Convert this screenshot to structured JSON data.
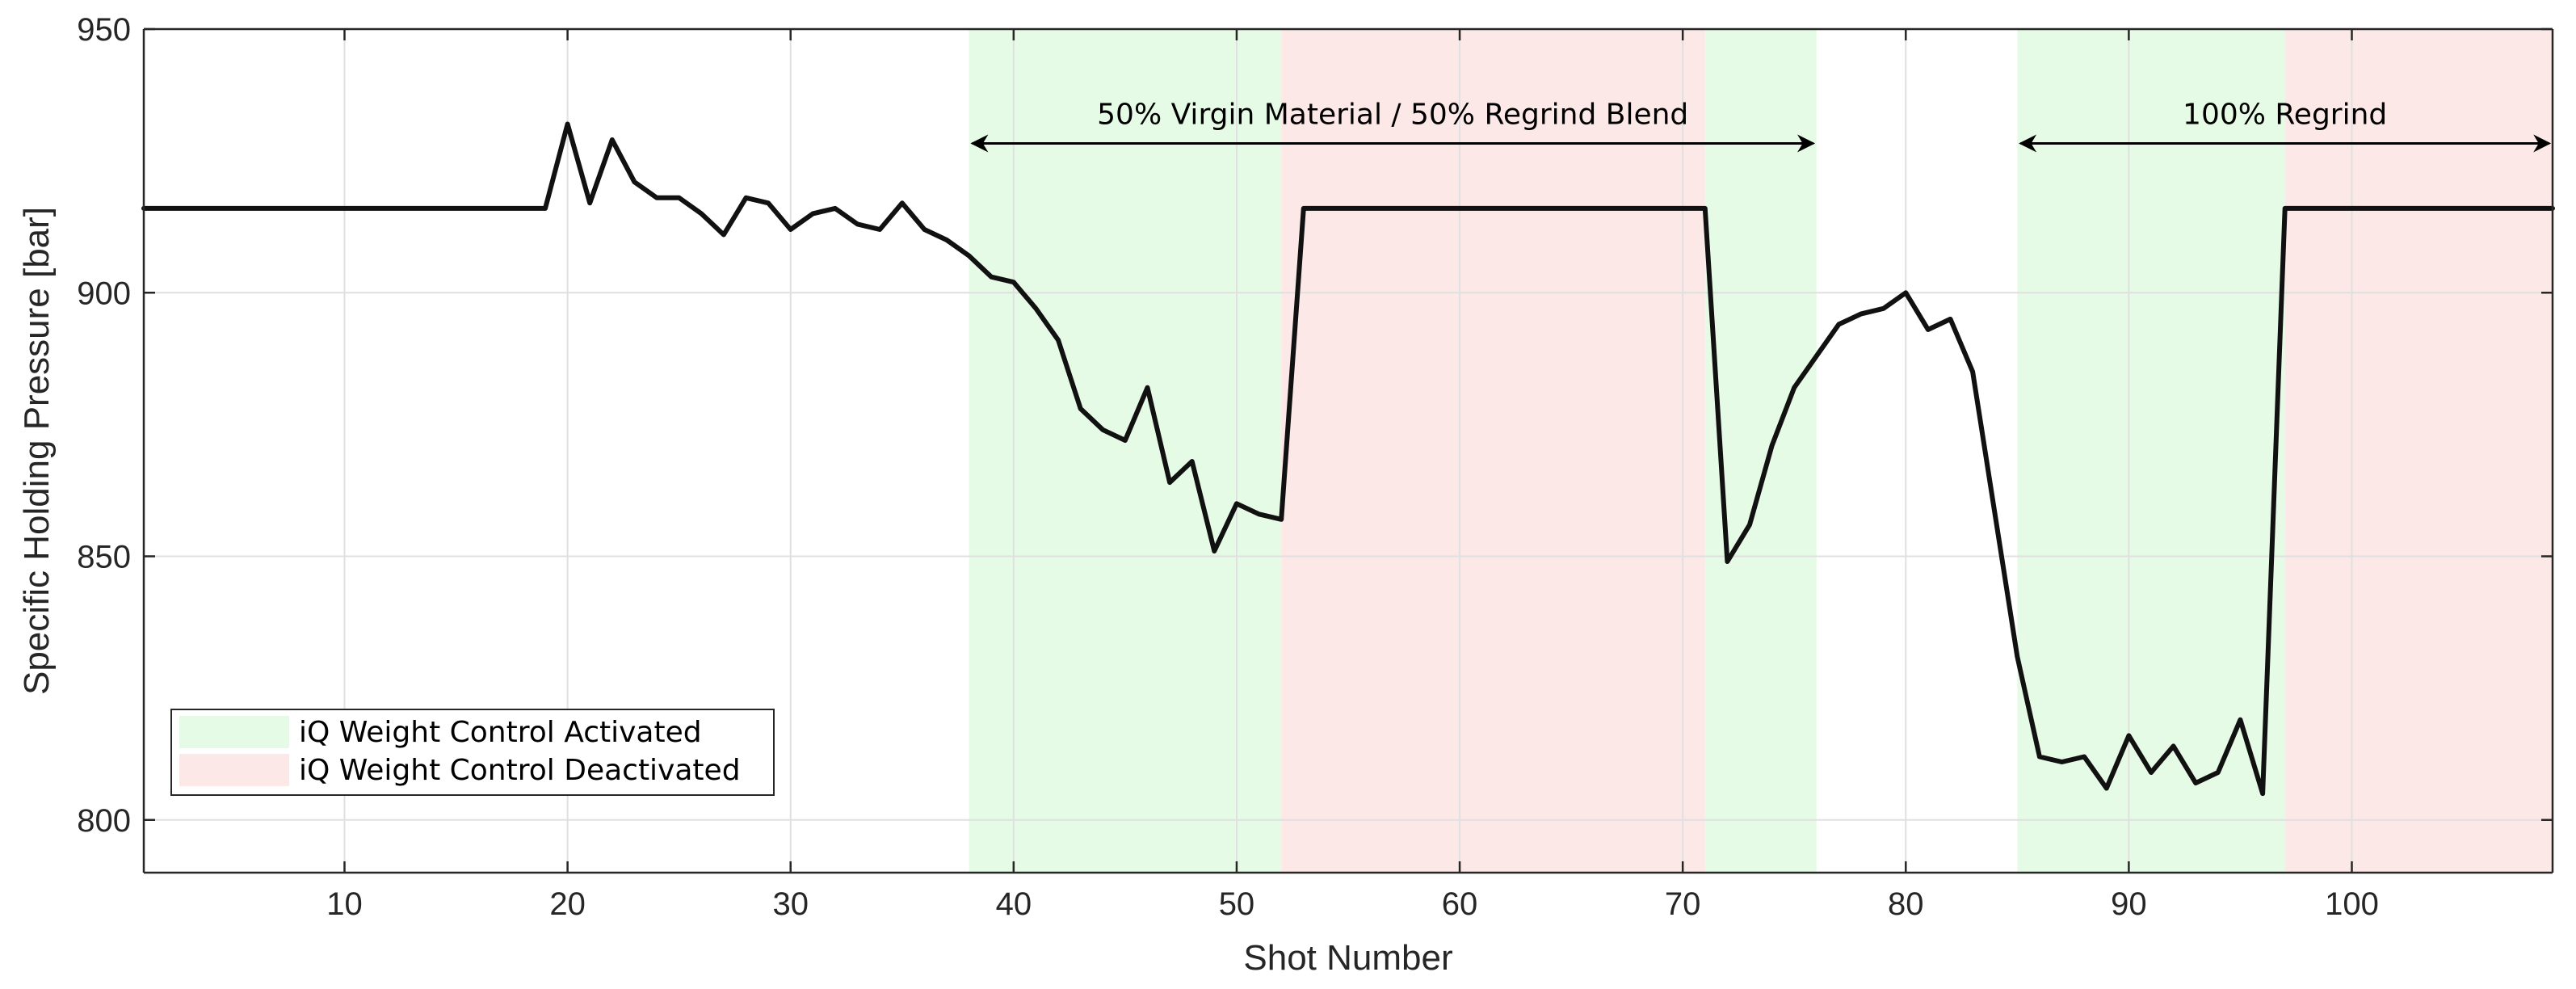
{
  "chart_data": {
    "type": "line",
    "xlabel": "Shot Number",
    "ylabel": "Specific Holding Pressure [bar]",
    "xlim": [
      1,
      109
    ],
    "ylim": [
      790,
      950
    ],
    "xticks": [
      10,
      20,
      30,
      40,
      50,
      60,
      70,
      80,
      90,
      100
    ],
    "yticks": [
      800,
      850,
      900,
      950
    ],
    "grid": true,
    "legend_position": "bottom-left",
    "colors": {
      "line": "#111111",
      "activated": "#e6fbe6",
      "deactivated": "#fde8e8",
      "grid": "#e0e0e0",
      "axis": "#262626"
    },
    "series": [
      {
        "x": [
          1,
          2,
          3,
          4,
          5,
          6,
          7,
          8,
          9,
          10,
          11,
          12,
          13,
          14,
          15,
          16,
          17,
          18,
          19,
          20,
          21,
          22,
          23,
          24,
          25,
          26,
          27,
          28,
          29,
          30,
          31,
          32,
          33,
          34,
          35,
          36,
          37,
          38,
          39,
          40,
          41,
          42,
          43,
          44,
          45,
          46,
          47,
          48,
          49,
          50,
          51,
          52,
          53,
          54,
          55,
          56,
          57,
          58,
          59,
          60,
          61,
          62,
          63,
          64,
          65,
          66,
          67,
          68,
          69,
          70,
          71,
          72,
          73,
          74,
          75,
          76,
          77,
          78,
          79,
          80,
          81,
          82,
          83,
          84,
          85,
          86,
          87,
          88,
          89,
          90,
          91,
          92,
          93,
          94,
          95,
          96,
          97,
          98,
          99,
          100,
          101,
          102,
          103,
          104,
          105,
          106,
          107,
          108,
          109
        ],
        "values": [
          916,
          916,
          916,
          916,
          916,
          916,
          916,
          916,
          916,
          916,
          916,
          916,
          916,
          916,
          916,
          916,
          916,
          916,
          916,
          932,
          917,
          929,
          921,
          918,
          918,
          915,
          911,
          918,
          917,
          912,
          915,
          916,
          913,
          912,
          917,
          912,
          910,
          907,
          903,
          902,
          897,
          891,
          878,
          874,
          872,
          882,
          864,
          868,
          851,
          860,
          858,
          857,
          916,
          916,
          916,
          916,
          916,
          916,
          916,
          916,
          916,
          916,
          916,
          916,
          916,
          916,
          916,
          916,
          916,
          916,
          916,
          849,
          856,
          871,
          882,
          888,
          894,
          896,
          897,
          900,
          893,
          895,
          885,
          858,
          831,
          812,
          811,
          812,
          806,
          816,
          809,
          814,
          807,
          809,
          819,
          805,
          916,
          916,
          916,
          916,
          916,
          916,
          916,
          916,
          916,
          916,
          916,
          916,
          916
        ]
      }
    ],
    "regions": [
      {
        "type": "activated",
        "x0": 38,
        "x1": 52
      },
      {
        "type": "deactivated",
        "x0": 52,
        "x1": 71
      },
      {
        "type": "activated",
        "x0": 71,
        "x1": 76
      },
      {
        "type": "activated",
        "x0": 85,
        "x1": 97
      },
      {
        "type": "deactivated",
        "x0": 97,
        "x1": 109
      }
    ],
    "annotations": [
      {
        "text": "50% Virgin Material / 50% Regrind Blend",
        "x0": 38,
        "x1": 76,
        "y": 932
      },
      {
        "text": "100% Regrind",
        "x0": 85,
        "x1": 109,
        "y": 932
      }
    ],
    "legend": [
      {
        "label": "iQ Weight Control Activated",
        "type": "activated"
      },
      {
        "label": "iQ Weight Control Deactivated",
        "type": "deactivated"
      }
    ]
  }
}
